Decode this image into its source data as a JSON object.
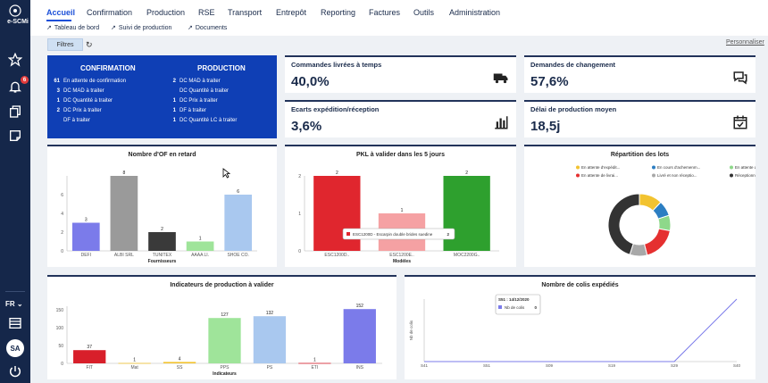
{
  "sidebar": {
    "logo_text": "e-SCMi",
    "icons": [
      "star-icon",
      "bell-icon",
      "copy-icon",
      "note-icon"
    ],
    "notification_count": "6",
    "language": "FR",
    "avatar_initials": "SA"
  },
  "nav": {
    "items": [
      "Accueil",
      "Confirmation",
      "Production",
      "RSE",
      "Transport",
      "Entrepôt",
      "Reporting",
      "Factures",
      "Outils",
      "Administration"
    ],
    "sub": [
      "Tableau de bord",
      "Suivi de production",
      "Documents"
    ]
  },
  "toolbar": {
    "filters_label": "Filtres",
    "customize_label": "Personnaliser"
  },
  "summary": {
    "confirmation_title": "CONFIRMATION",
    "production_title": "PRODUCTION",
    "confirmation_rows": [
      {
        "count": "61",
        "label": "En attente de confirmation"
      },
      {
        "count": "3",
        "label": "DC MAD à traiter"
      },
      {
        "count": "1",
        "label": "DC Quantité à traiter"
      },
      {
        "count": "2",
        "label": "DC Prix à traiter"
      },
      {
        "count": "",
        "label": "DF à traiter"
      }
    ],
    "production_rows": [
      {
        "count": "2",
        "label": "DC MAD à traiter"
      },
      {
        "count": "",
        "label": "DC Quantité à traiter"
      },
      {
        "count": "1",
        "label": "DC Prix à traiter"
      },
      {
        "count": "1",
        "label": "DF à traiter"
      },
      {
        "count": "1",
        "label": "DC Quantité LC à traiter"
      }
    ]
  },
  "kpis": [
    {
      "title": "Commandes livrées à temps",
      "value": "40,0%",
      "icon": "truck-icon"
    },
    {
      "title": "Demandes de changement",
      "value": "57,6%",
      "icon": "chat-icon"
    },
    {
      "title": "Ecarts expédition/réception",
      "value": "3,6%",
      "icon": "bar-chart-icon"
    },
    {
      "title": "Délai de production moyen",
      "value": "18,5j",
      "icon": "calendar-check-icon"
    }
  ],
  "chart_data": [
    {
      "type": "bar",
      "title": "Nombre d'OF en retard",
      "xlabel": "Fournisseurs",
      "ylabel": "",
      "categories": [
        "DEFI",
        "ALBI SRL",
        "TUNITEX",
        "AAAA LI.",
        "SHOE CO."
      ],
      "values": [
        3,
        8,
        2,
        1,
        6
      ],
      "colors": [
        "#7b7bea",
        "#9a9a9a",
        "#3a3a3a",
        "#9fe49a",
        "#a9c8ef"
      ],
      "ylim": [
        0,
        8
      ],
      "yticks": [
        0,
        2,
        4,
        6
      ]
    },
    {
      "type": "bar",
      "title": "PKL à valider dans les 5 jours",
      "xlabel": "Modèles",
      "ylabel": "",
      "categories": [
        "ESC1200D..",
        "ESC1200E..",
        "MOC2200G.."
      ],
      "values": [
        2,
        1,
        2
      ],
      "colors": [
        "#e0262e",
        "#f5a1a3",
        "#2ea02e"
      ],
      "ylim": [
        0,
        2
      ],
      "yticks": [
        0,
        1,
        2
      ],
      "tooltip": {
        "label": "ESC1200D - Escarpin double brides suedine",
        "value": "2"
      }
    },
    {
      "type": "pie",
      "title": "Répartition des lots",
      "legend": [
        "En attente d'expédit...",
        "En cours d'achemenm...",
        "En attente de RDV en...",
        "En attente de livrai...",
        "Livré et non réceptio...",
        "Réceptionné"
      ],
      "values": [
        12,
        8,
        8,
        18,
        9,
        45
      ],
      "colors": [
        "#f2c330",
        "#2c7ec2",
        "#8ed88a",
        "#e53030",
        "#a8a8a8",
        "#333333"
      ]
    },
    {
      "type": "bar",
      "title": "Indicateurs de production à valider",
      "xlabel": "Indicateurs",
      "ylabel": "",
      "categories": [
        "FIT",
        "Mat",
        "SS",
        "PPS",
        "PS",
        "ETI",
        "INS"
      ],
      "values": [
        37,
        1,
        4,
        127,
        132,
        1,
        152
      ],
      "colors": [
        "#d81f2a",
        "#f2c330",
        "#f2c330",
        "#9fe49a",
        "#a9c8ef",
        "#d81f2a",
        "#7b7bea"
      ],
      "ylim": [
        0,
        160
      ],
      "yticks": [
        0,
        50,
        100,
        150
      ]
    },
    {
      "type": "line",
      "title": "Nombre de colis expédiés",
      "xlabel": "",
      "ylabel": "Nb de colis",
      "x": [
        "S41",
        "S51",
        "S09",
        "S19",
        "S29",
        "S40"
      ],
      "series": [
        {
          "name": "Nb de colis",
          "values": [
            0,
            0,
            0,
            0,
            0,
            40
          ]
        }
      ],
      "tooltip": {
        "title": "S51 : 14/12/2020",
        "label": "Nb de colis",
        "value": "0"
      }
    }
  ]
}
